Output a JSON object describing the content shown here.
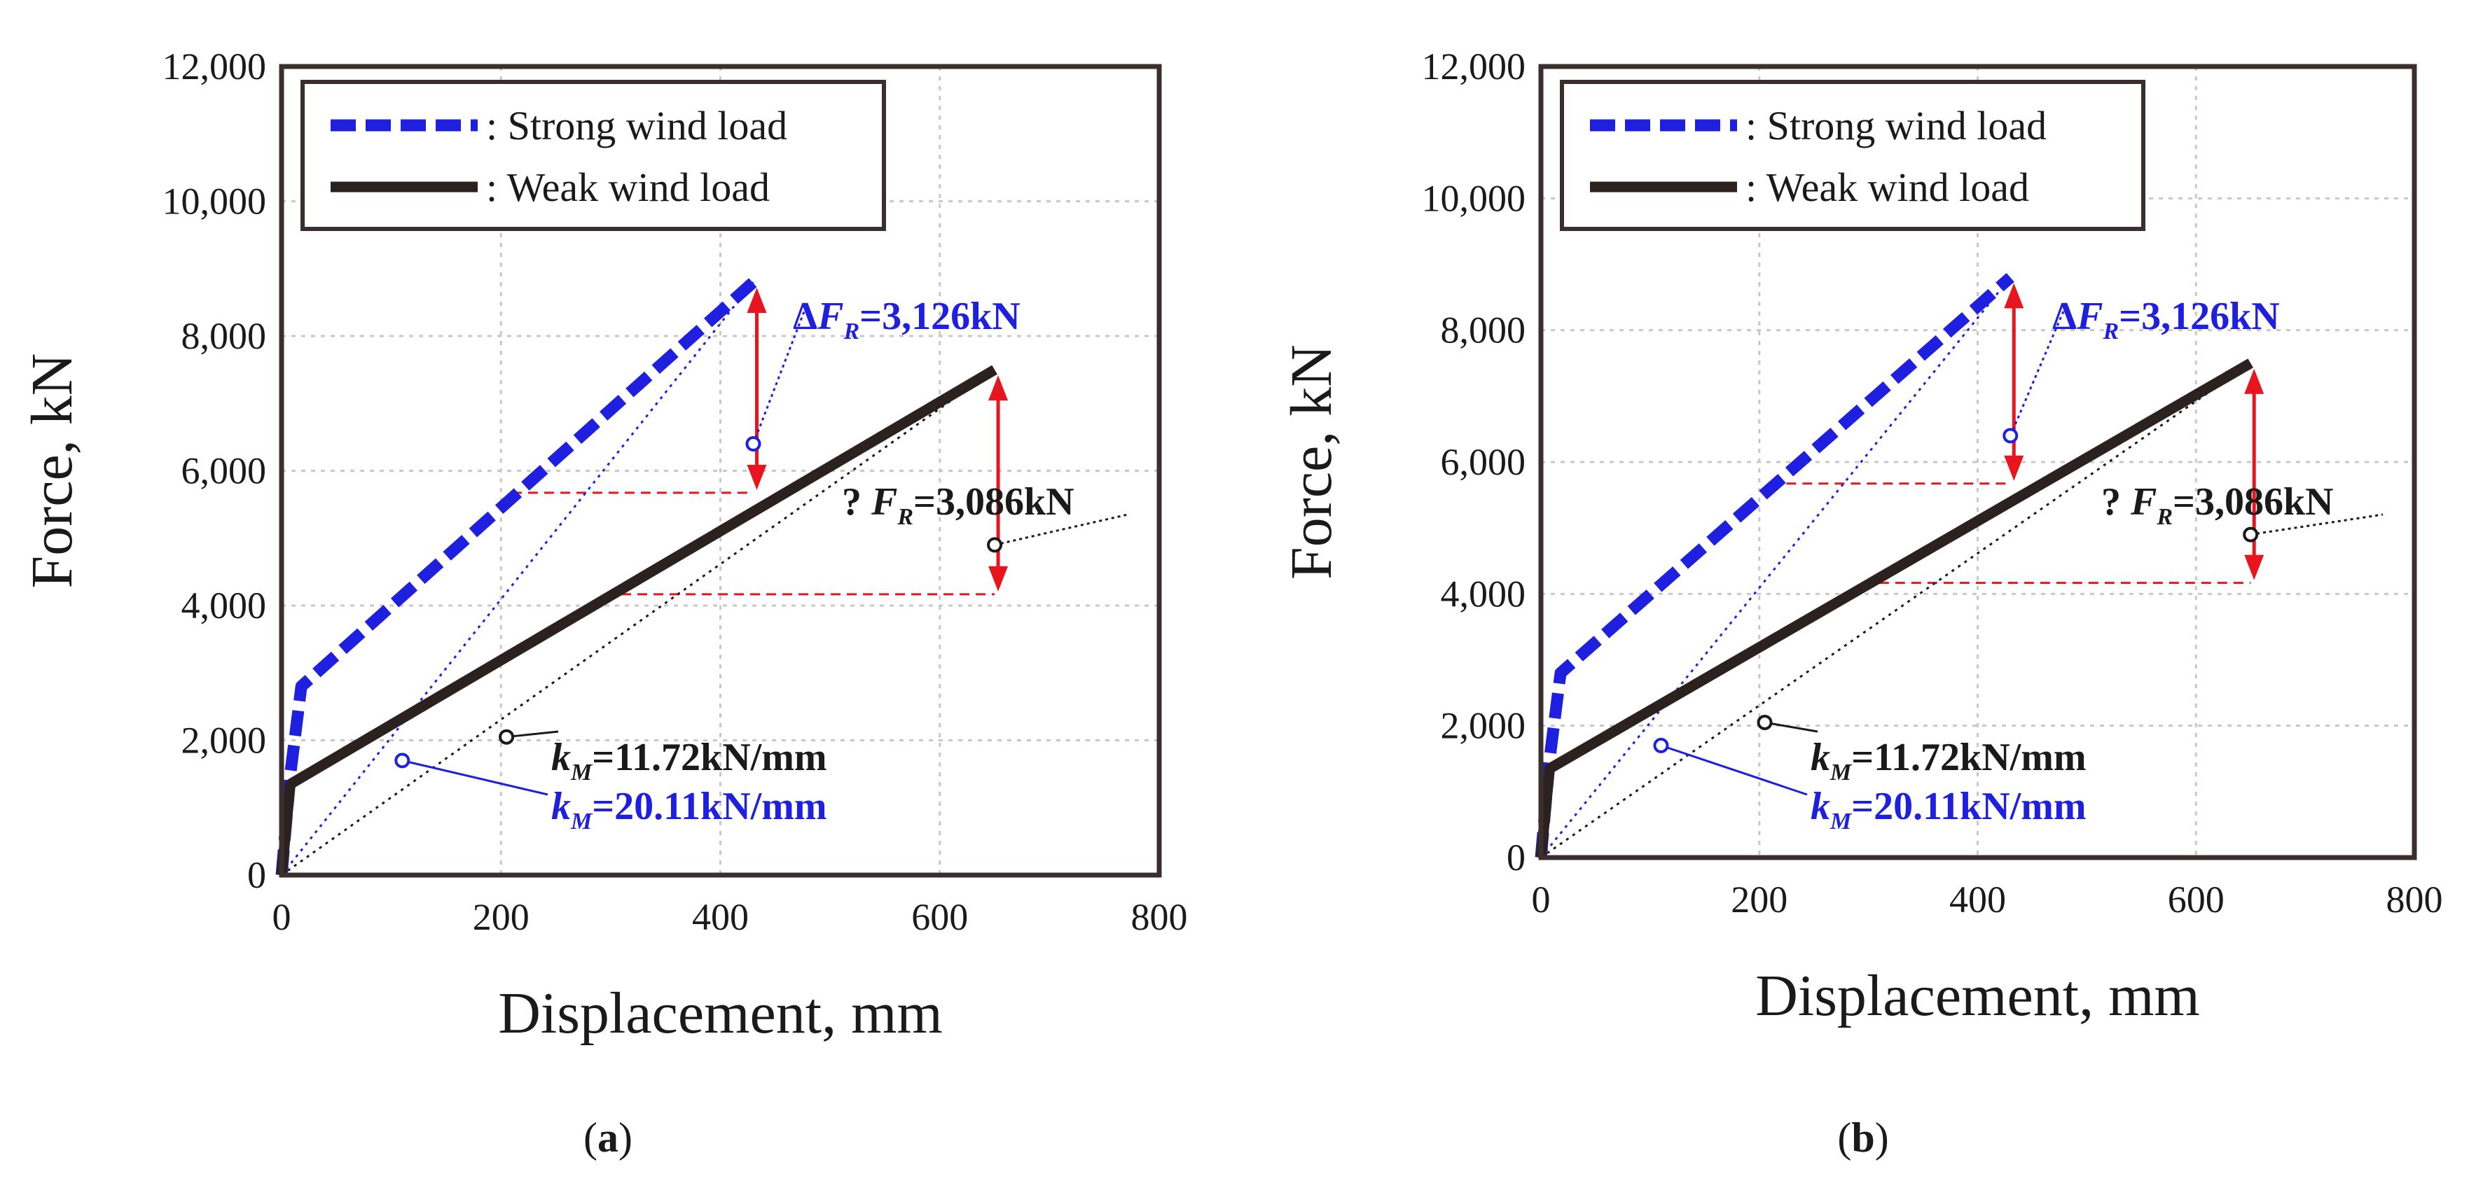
{
  "chart_data": [
    {
      "type": "line",
      "panel": "a",
      "caption_open": "(",
      "caption_letter": "a",
      "caption_close": ")",
      "xlabel": "Displacement, mm",
      "ylabel": "Force, kN",
      "xlim": [
        0,
        800
      ],
      "ylim": [
        0,
        12000
      ],
      "xticks": [
        0,
        200,
        400,
        600,
        800
      ],
      "xtick_labels": [
        "0",
        "200",
        "400",
        "600",
        "800"
      ],
      "yticks": [
        0,
        2000,
        4000,
        6000,
        8000,
        10000,
        12000
      ],
      "ytick_labels": [
        "0",
        "2,000",
        "4,000",
        "6,000",
        "8,000",
        "10,000",
        "12,000"
      ],
      "grid": true,
      "legend_position": "top-left",
      "series": [
        {
          "name": ": Strong wind load",
          "style": "dashed",
          "color": "#1f1fe0",
          "x": [
            0,
            8,
            18,
            430
          ],
          "y": [
            0,
            1500,
            2800,
            8800
          ]
        },
        {
          "name": ": Weak wind load",
          "style": "solid",
          "color": "#2b2220",
          "x": [
            0,
            8,
            650
          ],
          "y": [
            0,
            1350,
            7500
          ]
        }
      ],
      "annotations": [
        {
          "id": "delta-fr-strong",
          "prefix": "Δ",
          "symbol": "F",
          "sub": "R",
          "value": "=3,126kN",
          "color": "#1f1fe0",
          "at": [
            430,
            6400
          ]
        },
        {
          "id": "delta-fr-weak",
          "prefix": "? ",
          "symbol": "F",
          "sub": "R",
          "value": "=3,086kN",
          "color": "#1a1a1a",
          "at": [
            650,
            4900
          ]
        },
        {
          "id": "km-weak",
          "symbol": "k",
          "sub": "M",
          "value": "=11.72kN/mm",
          "color": "#1a1a1a",
          "at": [
            205,
            2050
          ]
        },
        {
          "id": "km-strong",
          "symbol": "k",
          "sub": "M",
          "value": "=20.11kN/mm",
          "color": "#1f1fe0",
          "at": [
            110,
            1700
          ]
        }
      ]
    },
    {
      "type": "line",
      "panel": "b",
      "caption_open": "(",
      "caption_letter": "b",
      "caption_close": ")",
      "xlabel": "Displacement, mm",
      "ylabel": "Force, kN",
      "xlim": [
        0,
        800
      ],
      "ylim": [
        0,
        12000
      ],
      "xticks": [
        0,
        200,
        400,
        600,
        800
      ],
      "xtick_labels": [
        "0",
        "200",
        "400",
        "600",
        "800"
      ],
      "yticks": [
        0,
        2000,
        4000,
        6000,
        8000,
        10000,
        12000
      ],
      "ytick_labels": [
        "0",
        "2,000",
        "4,000",
        "6,000",
        "8,000",
        "10,000",
        "12,000"
      ],
      "grid": true,
      "legend_position": "top-left",
      "series": [
        {
          "name": ": Strong wind load",
          "style": "dashed",
          "color": "#1f1fe0",
          "x": [
            0,
            8,
            18,
            430
          ],
          "y": [
            0,
            1500,
            2800,
            8800
          ]
        },
        {
          "name": ": Weak wind load",
          "style": "solid",
          "color": "#2b2220",
          "x": [
            0,
            8,
            650
          ],
          "y": [
            0,
            1350,
            7500
          ]
        }
      ],
      "annotations": [
        {
          "id": "delta-fr-strong",
          "prefix": "Δ",
          "symbol": "F",
          "sub": "R",
          "value": "=3,126kN",
          "color": "#1f1fe0",
          "at": [
            430,
            6400
          ]
        },
        {
          "id": "delta-fr-weak",
          "prefix": "? ",
          "symbol": "F",
          "sub": "R",
          "value": "=3,086kN",
          "color": "#1a1a1a",
          "at": [
            650,
            4900
          ]
        },
        {
          "id": "km-weak",
          "symbol": "k",
          "sub": "M",
          "value": "=11.72kN/mm",
          "color": "#1a1a1a",
          "at": [
            205,
            2050
          ]
        },
        {
          "id": "km-strong",
          "symbol": "k",
          "sub": "M",
          "value": "=20.11kN/mm",
          "color": "#1f1fe0",
          "at": [
            110,
            1700
          ]
        }
      ]
    }
  ],
  "colors": {
    "strong": "#1f1fe0",
    "weak": "#2b2220",
    "arrow": "#e8141e",
    "guide": "#e8141e",
    "grid": "#c8c8c8",
    "frame": "#3a2f2d"
  }
}
